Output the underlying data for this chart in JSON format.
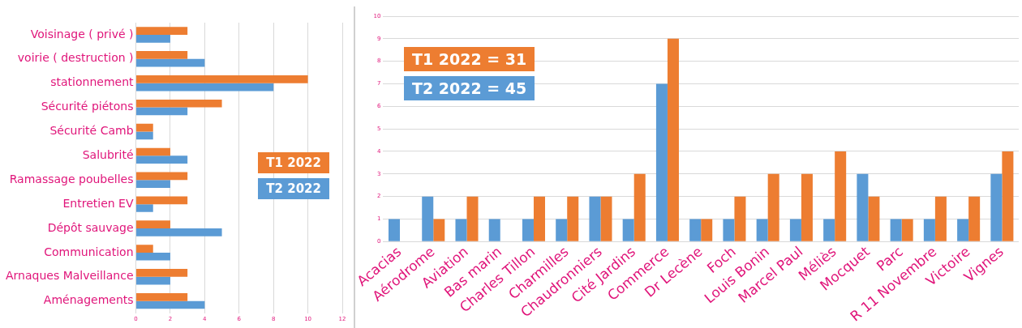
{
  "chart_data": [
    {
      "type": "bar",
      "orientation": "horizontal",
      "categories": [
        "Voisinage ( privé )",
        "voirie ( destruction )",
        "stationnement",
        "Sécurité piétons",
        "Sécurité Camb",
        "Salubrité",
        "Ramassage poubelles",
        "Entretien EV",
        "Dépôt sauvage",
        "Communication",
        "Arnaques Malveillance",
        "Aménagements"
      ],
      "series": [
        {
          "name": "T1 2022",
          "color": "#ed7d31",
          "values": [
            3,
            3,
            10,
            5,
            1,
            2,
            3,
            3,
            2,
            1,
            3,
            3
          ]
        },
        {
          "name": "T2 2022",
          "color": "#5b9bd5",
          "values": [
            2,
            4,
            8,
            3,
            1,
            3,
            2,
            1,
            5,
            2,
            2,
            4
          ]
        }
      ],
      "xlim": [
        0,
        12
      ],
      "xticks": [
        0,
        2,
        4,
        6,
        8,
        10,
        12
      ],
      "grid": "x",
      "legend": "right"
    },
    {
      "type": "bar",
      "categories": [
        "Acacias",
        "Aérodrome",
        "Aviation",
        "Bas marin",
        "Charles Tillon",
        "Charmilles",
        "Chaudronniers",
        "Cité Jardins",
        "Commerce",
        "Dr Lecène",
        "Foch",
        "Louis Bonin",
        "Marcel Paul",
        "Méliès",
        "Mocquet",
        "Parc",
        "R 11 Novembre",
        "Victoire",
        "Vignes"
      ],
      "series": [
        {
          "name": "T2 2022 = 45",
          "color": "#5b9bd5",
          "values": [
            1,
            2,
            1,
            1,
            1,
            1,
            2,
            1,
            7,
            1,
            1,
            1,
            1,
            1,
            3,
            1,
            1,
            1,
            3
          ]
        },
        {
          "name": "T1 2022 = 31",
          "color": "#ed7d31",
          "values": [
            null,
            1,
            2,
            null,
            2,
            2,
            2,
            3,
            9,
            1,
            2,
            3,
            3,
            4,
            2,
            1,
            2,
            2,
            4
          ]
        }
      ],
      "ylim": [
        0,
        10
      ],
      "yticks": [
        0,
        1,
        2,
        3,
        4,
        5,
        6,
        7,
        8,
        9,
        10
      ],
      "grid": "y",
      "legend": "top left"
    }
  ]
}
